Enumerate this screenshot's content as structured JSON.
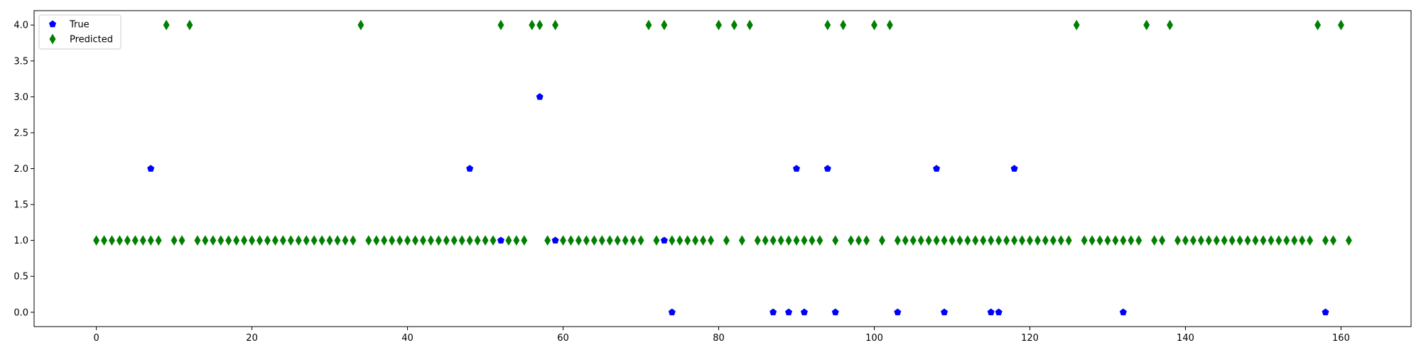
{
  "chart_data": {
    "type": "scatter",
    "xlim": [
      -8,
      169
    ],
    "ylim": [
      -0.2,
      4.2
    ],
    "x_ticks": [
      0,
      20,
      40,
      60,
      80,
      100,
      120,
      140,
      160
    ],
    "y_ticks": [
      0.0,
      0.5,
      1.0,
      1.5,
      2.0,
      2.5,
      3.0,
      3.5,
      4.0
    ],
    "y_tick_labels": [
      "0.0",
      "0.5",
      "1.0",
      "1.5",
      "2.0",
      "2.5",
      "3.0",
      "3.5",
      "4.0"
    ],
    "grid": false,
    "legend_position": "top-left",
    "series": [
      {
        "name": "True",
        "marker": "pentagon",
        "color": "#0000ff",
        "x": [
          7,
          48,
          52,
          57,
          59,
          73,
          74,
          87,
          89,
          90,
          91,
          94,
          95,
          103,
          108,
          109,
          115,
          116,
          118,
          132,
          158
        ],
        "y": [
          2,
          2,
          1,
          3,
          1,
          1,
          0,
          0,
          0,
          2,
          0,
          2,
          0,
          0,
          2,
          0,
          0,
          0,
          2,
          0,
          0
        ]
      },
      {
        "name": "Predicted",
        "marker": "thin-diamond",
        "color": "#008000",
        "x": [
          0,
          1,
          2,
          3,
          4,
          5,
          6,
          7,
          8,
          9,
          10,
          11,
          12,
          13,
          14,
          15,
          16,
          17,
          18,
          19,
          20,
          21,
          22,
          23,
          24,
          25,
          26,
          27,
          28,
          29,
          30,
          31,
          32,
          33,
          34,
          35,
          36,
          37,
          38,
          39,
          40,
          41,
          42,
          43,
          44,
          45,
          46,
          47,
          48,
          49,
          50,
          51,
          52,
          53,
          54,
          55,
          56,
          57,
          58,
          59,
          60,
          61,
          62,
          63,
          64,
          65,
          66,
          67,
          68,
          69,
          70,
          71,
          72,
          73,
          74,
          75,
          76,
          77,
          78,
          79,
          80,
          81,
          82,
          83,
          84,
          85,
          86,
          87,
          88,
          89,
          90,
          91,
          92,
          93,
          94,
          95,
          96,
          97,
          98,
          99,
          100,
          101,
          102,
          103,
          104,
          105,
          106,
          107,
          108,
          109,
          110,
          111,
          112,
          113,
          114,
          115,
          116,
          117,
          118,
          119,
          120,
          121,
          122,
          123,
          124,
          125,
          126,
          127,
          128,
          129,
          130,
          131,
          132,
          133,
          134,
          135,
          136,
          137,
          138,
          139,
          140,
          141,
          142,
          143,
          144,
          145,
          146,
          147,
          148,
          149,
          150,
          151,
          152,
          153,
          154,
          155,
          156,
          157,
          158,
          159,
          160,
          161
        ],
        "y": [
          1,
          1,
          1,
          1,
          1,
          1,
          1,
          1,
          1,
          4,
          1,
          1,
          4,
          1,
          1,
          1,
          1,
          1,
          1,
          1,
          1,
          1,
          1,
          1,
          1,
          1,
          1,
          1,
          1,
          1,
          1,
          1,
          1,
          1,
          4,
          1,
          1,
          1,
          1,
          1,
          1,
          1,
          1,
          1,
          1,
          1,
          1,
          1,
          1,
          1,
          1,
          1,
          4,
          1,
          1,
          1,
          4,
          4,
          1,
          4,
          1,
          1,
          1,
          1,
          1,
          1,
          1,
          1,
          1,
          1,
          1,
          4,
          1,
          4,
          1,
          1,
          1,
          1,
          1,
          1,
          4,
          1,
          4,
          1,
          4,
          1,
          1,
          1,
          1,
          1,
          1,
          1,
          1,
          1,
          4,
          1,
          4,
          1,
          1,
          1,
          4,
          1,
          4,
          1,
          1,
          1,
          1,
          1,
          1,
          1,
          1,
          1,
          1,
          1,
          1,
          1,
          1,
          1,
          1,
          1,
          1,
          1,
          1,
          1,
          1,
          1,
          4,
          1,
          1,
          1,
          1,
          1,
          1,
          1,
          1,
          4,
          1,
          1,
          4,
          1,
          1,
          1,
          1,
          1,
          1,
          1,
          1,
          1,
          1,
          1,
          1,
          1,
          1,
          1,
          1,
          1,
          1,
          4,
          1,
          1,
          4,
          1
        ]
      }
    ]
  }
}
